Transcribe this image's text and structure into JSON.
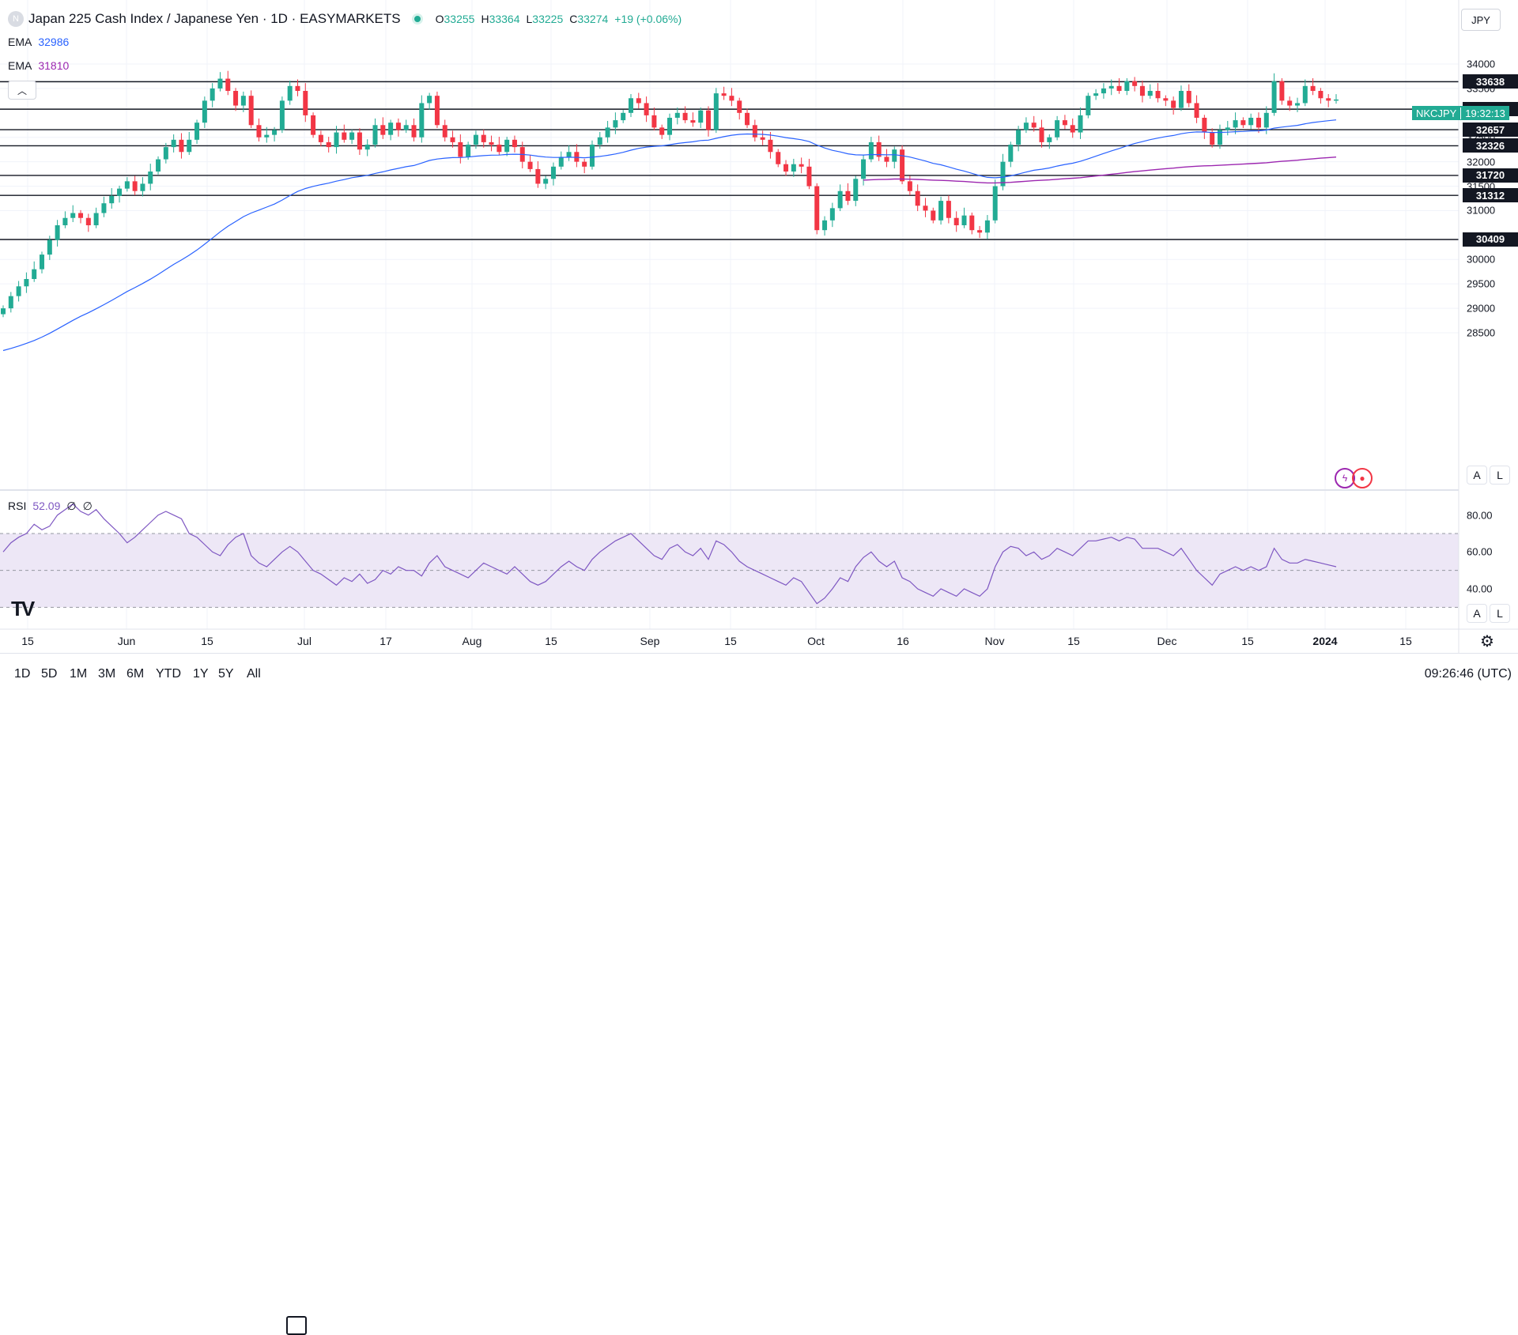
{
  "header": {
    "logo_letter": "N",
    "title": "Japan 225 Cash Index / Japanese Yen · 1D · EASYMARKETS",
    "ohlc": {
      "o_label": "O",
      "o": "33255",
      "h_label": "H",
      "h": "33364",
      "l_label": "L",
      "l": "33225",
      "c_label": "C",
      "c": "33274",
      "change": "+19 (+0.06%)"
    }
  },
  "indicators": {
    "ema1": {
      "label": "EMA",
      "value": "32986",
      "color": "#2962ff"
    },
    "ema2": {
      "label": "EMA",
      "value": "31810",
      "color": "#9c27b0"
    },
    "rsi": {
      "label": "RSI",
      "value": "52.09",
      "extra1": "∅",
      "extra2": "∅",
      "color": "#7e57c2"
    }
  },
  "price_axis": {
    "currency": "JPY",
    "ticks": [
      "34000",
      "33500",
      "32500",
      "32000",
      "31500",
      "31000",
      "30000",
      "29500",
      "29000",
      "28500"
    ],
    "rsi_ticks": [
      "80.00",
      "60.00",
      "40.00"
    ]
  },
  "levels": [
    "33638",
    "33076",
    "32657",
    "32326",
    "31720",
    "31312",
    "30409"
  ],
  "live": {
    "ticker": "NKCJPY",
    "countdown": "19:32:13"
  },
  "time_axis": [
    "15",
    "Jun",
    "15",
    "Jul",
    "17",
    "Aug",
    "15",
    "Sep",
    "15",
    "Oct",
    "16",
    "Nov",
    "15",
    "Dec",
    "15",
    "2024",
    "15"
  ],
  "toolbar": {
    "ranges": [
      "1D",
      "5D",
      "1M",
      "3M",
      "6M",
      "YTD",
      "1Y",
      "5Y",
      "All"
    ],
    "clock": "09:26:46 (UTC)"
  },
  "buttons": {
    "auto": "A",
    "log": "L"
  },
  "icons": {
    "calendar": "calendar-icon",
    "settings": "gear-icon",
    "collapse": "chevron-up-icon",
    "logo": "tradingview-logo"
  },
  "colors": {
    "up": "#22ab94",
    "down": "#f23645",
    "ema1": "#2962ff",
    "ema2": "#9c27b0",
    "rsi": "#7e57c2",
    "rsi_band": "#ede7f6"
  },
  "chart_data": {
    "type": "candlestick",
    "title": "Japan 225 Cash Index / Japanese Yen · 1D · EASYMARKETS",
    "ylim": [
      28000,
      34400
    ],
    "x_labels": [
      "15",
      "Jun",
      "15",
      "Jul",
      "17",
      "Aug",
      "15",
      "Sep",
      "15",
      "Oct",
      "16",
      "Nov",
      "15",
      "Dec",
      "15",
      "2024",
      "15"
    ],
    "horizontal_levels": [
      33638,
      33076,
      32657,
      32326,
      31720,
      31312,
      30409
    ],
    "close_series": [
      29000,
      29250,
      29450,
      29600,
      29800,
      30100,
      30400,
      30700,
      30850,
      30950,
      30850,
      30700,
      30950,
      31150,
      31300,
      31450,
      31600,
      31400,
      31550,
      31800,
      32050,
      32300,
      32450,
      32200,
      32450,
      32800,
      33250,
      33500,
      33700,
      33450,
      33150,
      33350,
      32750,
      32500,
      32550,
      32650,
      33250,
      33550,
      33450,
      32950,
      32550,
      32400,
      32300,
      32600,
      32450,
      32600,
      32250,
      32350,
      32750,
      32550,
      32800,
      32650,
      32750,
      32500,
      33200,
      33350,
      32750,
      32500,
      32400,
      32100,
      32350,
      32550,
      32400,
      32350,
      32200,
      32450,
      32300,
      32000,
      31850,
      31550,
      31650,
      31900,
      32100,
      32200,
      32000,
      31900,
      32350,
      32500,
      32700,
      32850,
      33000,
      33300,
      33200,
      32950,
      32700,
      32550,
      32900,
      33000,
      32850,
      32800,
      33050,
      32650,
      33400,
      33350,
      33250,
      33000,
      32750,
      32500,
      32450,
      32200,
      31950,
      31800,
      31950,
      31900,
      31500,
      30600,
      30800,
      31050,
      31400,
      31200,
      31650,
      32050,
      32400,
      32100,
      32000,
      32250,
      31600,
      31400,
      31100,
      31000,
      30800,
      31200,
      30850,
      30700,
      30900,
      30600,
      30550,
      30800,
      31500,
      32000,
      32350,
      32650,
      32800,
      32700,
      32400,
      32500,
      32850,
      32750,
      32600,
      32950,
      33350,
      33400,
      33500,
      33550,
      33450,
      33650,
      33550,
      33350,
      33450,
      33300,
      33250,
      33100,
      33450,
      33200,
      32900,
      32600,
      32350,
      32650,
      32700,
      32850,
      32750,
      32900,
      32700,
      33000,
      33650,
      33250,
      33150,
      33200,
      33550,
      33450,
      33300,
      33250,
      33274
    ],
    "ema_fast": {
      "name": "EMA",
      "last": 32986
    },
    "ema_slow": {
      "name": "EMA",
      "last": 31810
    },
    "rsi": {
      "last": 52.09,
      "levels": [
        70,
        50,
        30
      ],
      "range": [
        25,
        85
      ],
      "values": [
        60,
        65,
        68,
        70,
        75,
        72,
        74,
        80,
        83,
        86,
        82,
        80,
        83,
        78,
        74,
        70,
        65,
        68,
        72,
        76,
        80,
        82,
        80,
        78,
        70,
        68,
        64,
        60,
        58,
        64,
        68,
        70,
        58,
        54,
        52,
        56,
        60,
        63,
        60,
        55,
        50,
        48,
        45,
        42,
        46,
        44,
        48,
        43,
        45,
        50,
        48,
        52,
        50,
        50,
        47,
        54,
        58,
        52,
        50,
        48,
        46,
        50,
        54,
        52,
        50,
        48,
        52,
        48,
        44,
        42,
        44,
        48,
        52,
        55,
        52,
        50,
        56,
        60,
        63,
        66,
        68,
        70,
        66,
        62,
        58,
        56,
        62,
        64,
        60,
        58,
        62,
        56,
        66,
        64,
        60,
        55,
        52,
        50,
        48,
        46,
        44,
        42,
        46,
        44,
        38,
        32,
        35,
        40,
        46,
        44,
        52,
        57,
        60,
        55,
        52,
        55,
        46,
        44,
        40,
        38,
        36,
        40,
        38,
        36,
        40,
        38,
        36,
        40,
        52,
        60,
        63,
        62,
        58,
        60,
        56,
        58,
        62,
        60,
        58,
        62,
        66,
        66,
        67,
        68,
        66,
        68,
        67,
        62,
        62,
        62,
        60,
        58,
        62,
        56,
        50,
        46,
        42,
        48,
        50,
        52,
        50,
        52,
        50,
        52,
        62,
        56,
        54,
        54,
        56,
        55,
        54,
        53,
        52
      ]
    }
  }
}
